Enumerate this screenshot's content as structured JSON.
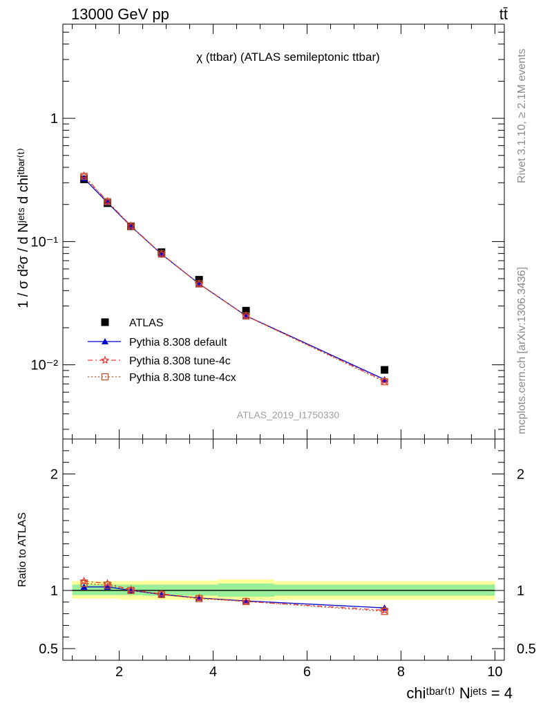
{
  "header": {
    "energy_label": "13000 GeV pp",
    "process_label": "tt̄"
  },
  "side_labels": {
    "rivet": "Rivet 3.1.10, ≥ 2.1M events",
    "mcplots": "mcplots.cern.ch [arXiv:1306.3436]"
  },
  "chart_data": [
    {
      "type": "scatter",
      "title": "χ (ttbar) (ATLAS semileptonic ttbar)",
      "watermark": "ATLAS_2019_I1750330",
      "ylabel": "1 / σ d²σ / d Nʲᵉᵗˢ d chiᵗᵇᵃʳ⁽ᵗ⁾",
      "yscale": "log",
      "ylim": [
        0.0025,
        5.8
      ],
      "xlim": [
        0.8,
        10.2
      ],
      "y_ticks": [
        "1",
        "10⁻¹",
        "10⁻²"
      ],
      "legend_placement": "bottom-left",
      "x": [
        1.25,
        1.75,
        2.25,
        2.9,
        3.7,
        4.7,
        7.65
      ],
      "series": [
        {
          "name": "ATLAS",
          "color": "#000000",
          "marker": "square",
          "values": [
            0.32,
            0.205,
            0.133,
            0.082,
            0.049,
            0.0275,
            0.0091
          ]
        },
        {
          "name": "Pythia 8.308 default",
          "color": "#0000cc",
          "marker": "triangle",
          "values": [
            0.325,
            0.207,
            0.133,
            0.079,
            0.0455,
            0.025,
            0.0076
          ]
        },
        {
          "name": "Pythia 8.308 tune-4c",
          "color": "#ee3333",
          "marker": "star",
          "values": [
            0.342,
            0.212,
            0.134,
            0.0795,
            0.0455,
            0.025,
            0.0074
          ]
        },
        {
          "name": "Pythia 8.308 tune-4cx",
          "color": "#c0502a",
          "marker": "open-square",
          "values": [
            0.338,
            0.211,
            0.133,
            0.0792,
            0.0453,
            0.0249,
            0.0073
          ]
        }
      ]
    },
    {
      "type": "line",
      "ylabel": "Ratio to ATLAS",
      "xlabel": "chiᵗᵇᵃʳ⁽ᵗ⁾ Nʲᵉᵗˢ = 4",
      "ylim": [
        0.4,
        2.3
      ],
      "xlim": [
        0.8,
        10.2
      ],
      "y_ticks": [
        "2",
        "1",
        "0.5"
      ],
      "x_ticks": [
        "2",
        "4",
        "6",
        "8",
        "10"
      ],
      "x": [
        1.25,
        1.75,
        2.25,
        2.9,
        3.7,
        4.7,
        7.65
      ],
      "uncertainty_bins": [
        {
          "lo": 1.0,
          "hi": 1.5,
          "inner": [
            0.96,
            1.05
          ],
          "outer": [
            0.93,
            1.08
          ]
        },
        {
          "lo": 1.5,
          "hi": 2.0,
          "inner": [
            0.96,
            1.05
          ],
          "outer": [
            0.93,
            1.08
          ]
        },
        {
          "lo": 2.0,
          "hi": 2.5,
          "inner": [
            0.96,
            1.05
          ],
          "outer": [
            0.92,
            1.08
          ]
        },
        {
          "lo": 2.5,
          "hi": 3.3,
          "inner": [
            0.955,
            1.05
          ],
          "outer": [
            0.92,
            1.085
          ]
        },
        {
          "lo": 3.3,
          "hi": 4.1,
          "inner": [
            0.955,
            1.05
          ],
          "outer": [
            0.92,
            1.085
          ]
        },
        {
          "lo": 4.1,
          "hi": 5.3,
          "inner": [
            0.945,
            1.06
          ],
          "outer": [
            0.915,
            1.095
          ]
        },
        {
          "lo": 5.3,
          "hi": 10.0,
          "inner": [
            0.955,
            1.05
          ],
          "outer": [
            0.92,
            1.08
          ]
        }
      ],
      "series": [
        {
          "name": "ATLAS",
          "color": "#000000",
          "values": [
            1,
            1,
            1,
            1,
            1,
            1,
            1
          ]
        },
        {
          "name": "Pythia 8.308 default",
          "color": "#0000cc",
          "values": [
            1.03,
            1.03,
            1.0,
            0.965,
            0.935,
            0.91,
            0.85
          ]
        },
        {
          "name": "Pythia 8.308 tune-4c",
          "color": "#ee3333",
          "values": [
            1.08,
            1.06,
            1.005,
            0.97,
            0.935,
            0.905,
            0.83
          ]
        },
        {
          "name": "Pythia 8.308 tune-4cx",
          "color": "#c0502a",
          "values": [
            1.06,
            1.045,
            1.0,
            0.965,
            0.93,
            0.905,
            0.82
          ]
        }
      ]
    }
  ]
}
